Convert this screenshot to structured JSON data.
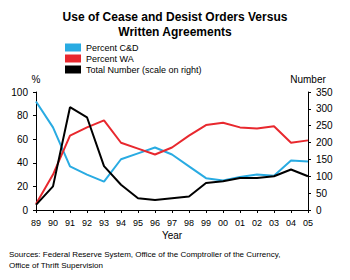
{
  "chart_data": {
    "type": "line",
    "title": "Use of Cease and Desist Orders Versus\nWritten Agreements",
    "source": "Sources: Federal Reserve System, Office of the Comptroller of the Currency,\nOffice of Thrift Supervision",
    "x_label": "Year",
    "y_label": "%",
    "y2_label": "Number",
    "categories": [
      "89",
      "90",
      "91",
      "92",
      "93",
      "94",
      "95",
      "96",
      "97",
      "98",
      "99",
      "00",
      "01",
      "02",
      "03",
      "04",
      "05"
    ],
    "series": [
      {
        "name": "Percent C&D",
        "color": "#29abe2",
        "values": [
          92,
          70,
          37,
          30,
          24,
          43,
          48,
          53,
          47,
          37,
          27,
          25,
          28,
          30,
          29,
          42,
          41
        ]
      },
      {
        "name": "Percent WA",
        "color": "#e8282e",
        "values": [
          5,
          30,
          63,
          70,
          76,
          57,
          52,
          47,
          53,
          63,
          72,
          74,
          70,
          69,
          71,
          57,
          59
        ]
      },
      {
        "name": "Total Number (scale on right)",
        "color": "#000000",
        "axis": "y2",
        "values": [
          15,
          70,
          305,
          275,
          130,
          75,
          35,
          30,
          35,
          40,
          80,
          85,
          95,
          95,
          100,
          120,
          100
        ]
      }
    ],
    "ylim": [
      0,
      100
    ],
    "yticks": [
      0,
      20,
      40,
      60,
      80,
      100
    ],
    "y2lim": [
      0,
      350
    ],
    "y2ticks": [
      0,
      50,
      100,
      150,
      200,
      250,
      300,
      350
    ],
    "grid": false,
    "legend": "top"
  }
}
